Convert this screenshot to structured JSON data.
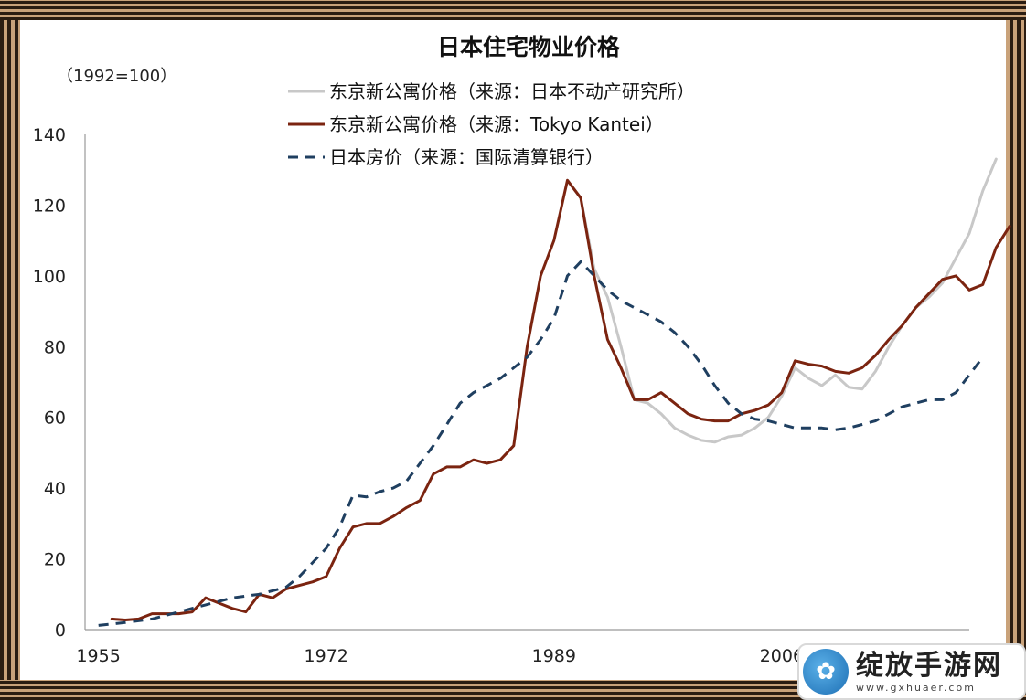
{
  "chart_data": {
    "type": "line",
    "title": "日本住宅物业价格",
    "unit_label": "（1992=100）",
    "ylim": [
      0,
      140
    ],
    "yticks": [
      0,
      20,
      40,
      60,
      80,
      100,
      120,
      140
    ],
    "xlim": [
      1954,
      2020
    ],
    "xticks": [
      1955,
      1972,
      1989,
      2006
    ],
    "grid": false,
    "legend_position": "top-center",
    "series": [
      {
        "name": "东京新公寓价格（来源：日本不动产研究所）",
        "color": "#c8c8c8",
        "style": "solid",
        "points": [
          [
            1990,
            127
          ],
          [
            1991,
            122
          ],
          [
            1992,
            102
          ],
          [
            1993,
            94
          ],
          [
            1994,
            80
          ],
          [
            1995,
            65
          ],
          [
            1996,
            64
          ],
          [
            1997,
            61
          ],
          [
            1998,
            57
          ],
          [
            1999,
            55
          ],
          [
            2000,
            53.5
          ],
          [
            2001,
            53
          ],
          [
            2002,
            54.5
          ],
          [
            2003,
            55
          ],
          [
            2004,
            57
          ],
          [
            2005,
            60
          ],
          [
            2006,
            66
          ],
          [
            2007,
            74
          ],
          [
            2008,
            71
          ],
          [
            2009,
            69
          ],
          [
            2010,
            72
          ],
          [
            2011,
            68.5
          ],
          [
            2012,
            68
          ],
          [
            2013,
            73
          ],
          [
            2014,
            80
          ],
          [
            2015,
            86
          ],
          [
            2016,
            91
          ],
          [
            2017,
            94
          ],
          [
            2018,
            98
          ],
          [
            2019,
            105
          ],
          [
            2020,
            112
          ],
          [
            2021,
            124
          ],
          [
            2022,
            133
          ]
        ]
      },
      {
        "name": "东京新公寓价格（来源：Tokyo Kantei）",
        "color": "#7b2410",
        "style": "solid",
        "points": [
          [
            1956,
            3
          ],
          [
            1957,
            2.7
          ],
          [
            1958,
            3
          ],
          [
            1959,
            4.5
          ],
          [
            1961,
            4.5
          ],
          [
            1962,
            5
          ],
          [
            1963,
            9
          ],
          [
            1964,
            7.5
          ],
          [
            1965,
            6
          ],
          [
            1966,
            5
          ],
          [
            1967,
            10
          ],
          [
            1968,
            9
          ],
          [
            1969,
            11.5
          ],
          [
            1970,
            12.5
          ],
          [
            1971,
            13.5
          ],
          [
            1972,
            15
          ],
          [
            1973,
            23
          ],
          [
            1974,
            29
          ],
          [
            1975,
            30
          ],
          [
            1976,
            30
          ],
          [
            1977,
            32
          ],
          [
            1978,
            34.5
          ],
          [
            1979,
            36.5
          ],
          [
            1980,
            44
          ],
          [
            1981,
            46
          ],
          [
            1982,
            46
          ],
          [
            1983,
            48
          ],
          [
            1984,
            47
          ],
          [
            1985,
            48
          ],
          [
            1986,
            52
          ],
          [
            1987,
            80
          ],
          [
            1988,
            100
          ],
          [
            1989,
            110
          ],
          [
            1990,
            127
          ],
          [
            1991,
            122
          ],
          [
            1992,
            100
          ],
          [
            1993,
            82
          ],
          [
            1994,
            74
          ],
          [
            1995,
            65
          ],
          [
            1996,
            65
          ],
          [
            1997,
            67
          ],
          [
            1998,
            64
          ],
          [
            1999,
            61
          ],
          [
            2000,
            59.5
          ],
          [
            2001,
            59
          ],
          [
            2002,
            59
          ],
          [
            2003,
            61
          ],
          [
            2004,
            62
          ],
          [
            2005,
            63.5
          ],
          [
            2006,
            67
          ],
          [
            2007,
            76
          ],
          [
            2008,
            75
          ],
          [
            2009,
            74.5
          ],
          [
            2010,
            73
          ],
          [
            2011,
            72.5
          ],
          [
            2012,
            74
          ],
          [
            2013,
            77.5
          ],
          [
            2014,
            82
          ],
          [
            2015,
            86
          ],
          [
            2016,
            91
          ],
          [
            2017,
            95
          ],
          [
            2018,
            99
          ],
          [
            2019,
            100
          ],
          [
            2020,
            96
          ],
          [
            2021,
            97.5
          ],
          [
            2022,
            108
          ],
          [
            2023,
            114
          ]
        ]
      },
      {
        "name": "日本房价（来源：国际清算银行）",
        "color": "#1f3f60",
        "style": "dashed",
        "points": [
          [
            1955,
            1.2
          ],
          [
            1957,
            2
          ],
          [
            1959,
            3
          ],
          [
            1961,
            5
          ],
          [
            1963,
            7
          ],
          [
            1965,
            9
          ],
          [
            1967,
            10
          ],
          [
            1969,
            12
          ],
          [
            1970,
            15
          ],
          [
            1971,
            19
          ],
          [
            1972,
            23
          ],
          [
            1973,
            29
          ],
          [
            1974,
            38
          ],
          [
            1975,
            37.5
          ],
          [
            1976,
            39
          ],
          [
            1977,
            40
          ],
          [
            1978,
            42
          ],
          [
            1979,
            47
          ],
          [
            1980,
            52
          ],
          [
            1981,
            58
          ],
          [
            1982,
            64
          ],
          [
            1983,
            67
          ],
          [
            1984,
            69
          ],
          [
            1985,
            71
          ],
          [
            1986,
            74
          ],
          [
            1987,
            77
          ],
          [
            1988,
            82
          ],
          [
            1989,
            88
          ],
          [
            1990,
            100
          ],
          [
            1991,
            104
          ],
          [
            1992,
            100
          ],
          [
            1993,
            96
          ],
          [
            1994,
            93
          ],
          [
            1995,
            91
          ],
          [
            1996,
            89
          ],
          [
            1997,
            87
          ],
          [
            1998,
            84
          ],
          [
            1999,
            80
          ],
          [
            2000,
            75
          ],
          [
            2001,
            69
          ],
          [
            2002,
            64
          ],
          [
            2003,
            61
          ],
          [
            2004,
            59.5
          ],
          [
            2005,
            59
          ],
          [
            2006,
            58
          ],
          [
            2007,
            57
          ],
          [
            2008,
            57
          ],
          [
            2009,
            57
          ],
          [
            2010,
            56.5
          ],
          [
            2011,
            57
          ],
          [
            2012,
            58
          ],
          [
            2013,
            59
          ],
          [
            2014,
            61
          ],
          [
            2015,
            63
          ],
          [
            2016,
            64
          ],
          [
            2017,
            65
          ],
          [
            2018,
            65
          ],
          [
            2019,
            67
          ],
          [
            2020,
            72
          ],
          [
            2021,
            77
          ]
        ]
      }
    ]
  },
  "watermark": {
    "name": "绽放手游网",
    "url": "www.gxhuaer.com",
    "logo_icon": "octopus-icon"
  }
}
